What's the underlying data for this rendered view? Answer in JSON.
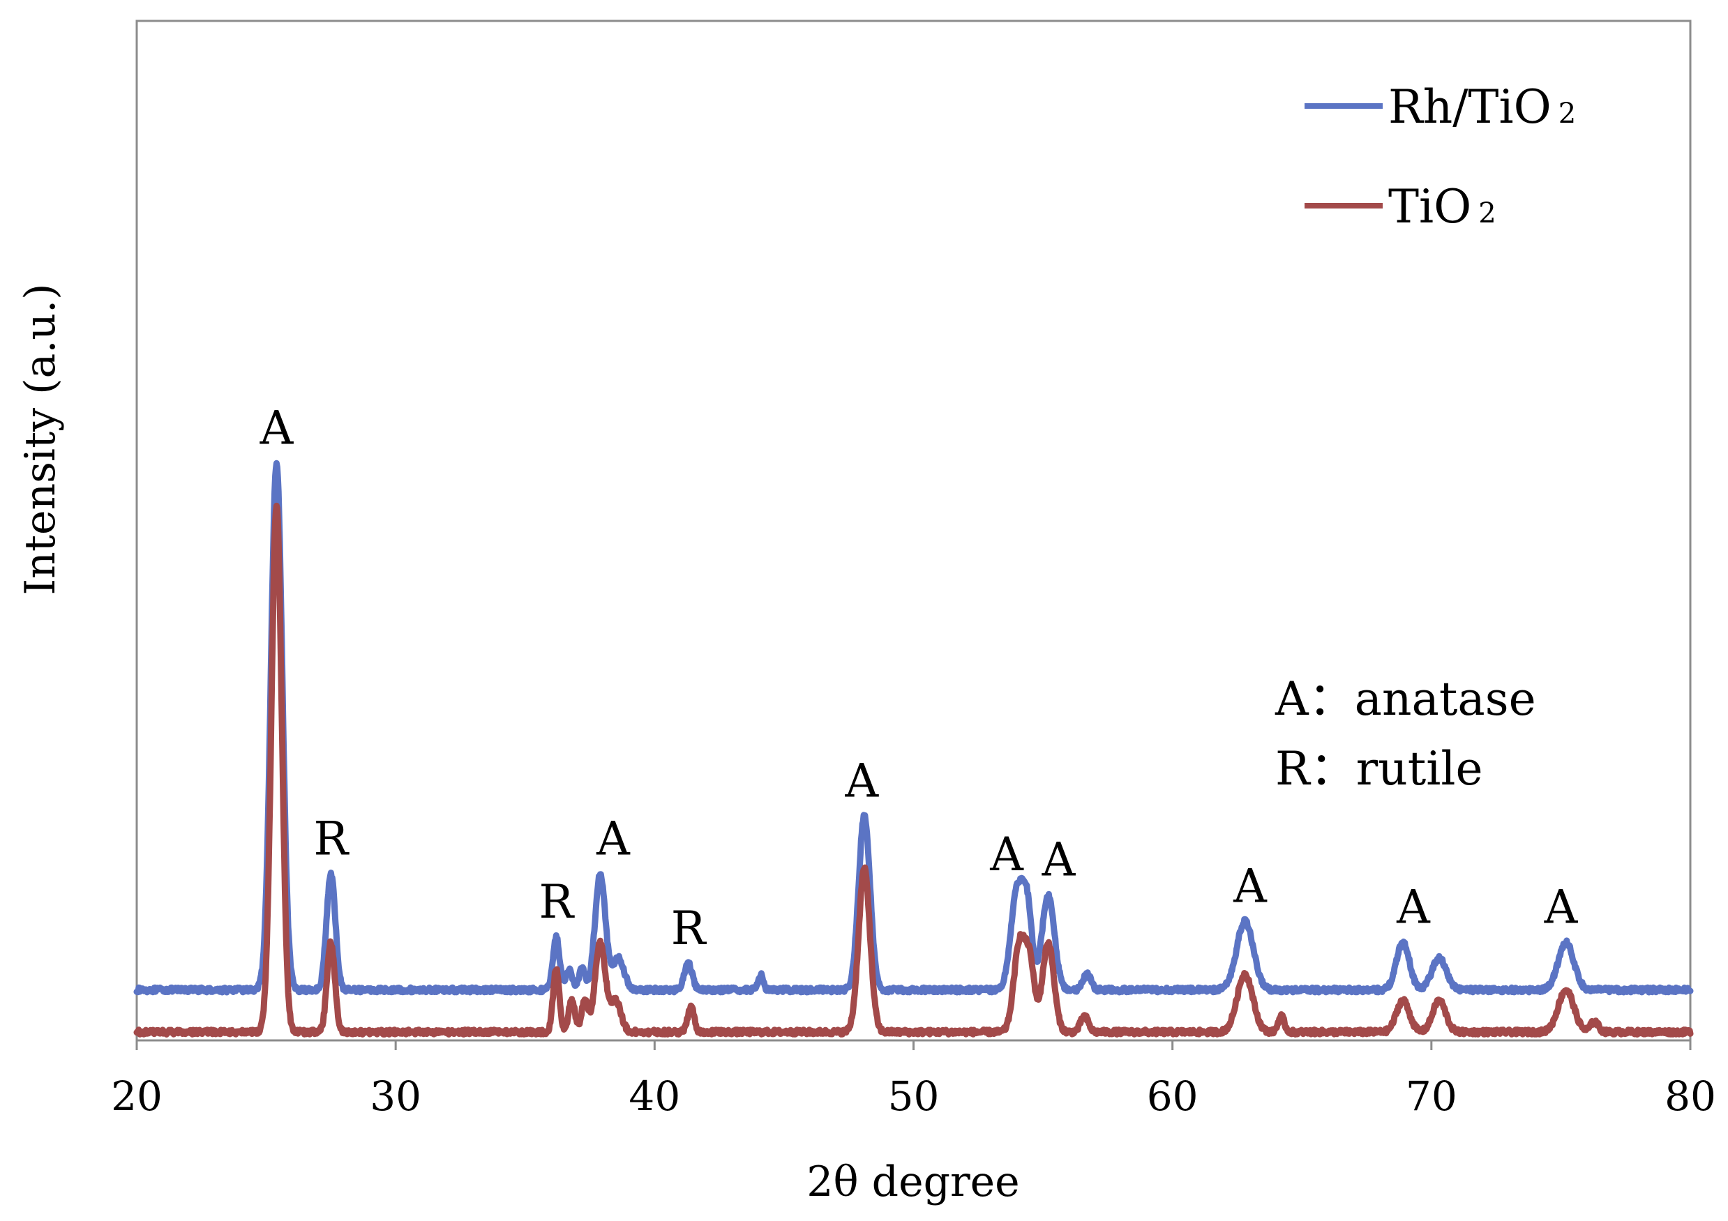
{
  "chart_data": {
    "type": "line",
    "title": "",
    "xlabel": "2θ degree",
    "ylabel": "Intensity (a.u.)",
    "xlim": [
      20,
      80
    ],
    "xticks": [
      20,
      30,
      40,
      50,
      60,
      70,
      80
    ],
    "yticks_shown": false,
    "grid": false,
    "legend_position": "top-right",
    "series": [
      {
        "name": "Rh/TiO₂",
        "color": "#5b74c4",
        "baseline": 0.08,
        "noise_level": 0.0045,
        "peaks": [
          {
            "x": 25.4,
            "height": 1.0,
            "width": 0.22
          },
          {
            "x": 27.5,
            "height": 0.22,
            "width": 0.17
          },
          {
            "x": 36.2,
            "height": 0.1,
            "width": 0.13
          },
          {
            "x": 36.7,
            "height": 0.04,
            "width": 0.12
          },
          {
            "x": 37.2,
            "height": 0.04,
            "width": 0.12
          },
          {
            "x": 37.9,
            "height": 0.22,
            "width": 0.2
          },
          {
            "x": 38.6,
            "height": 0.06,
            "width": 0.22
          },
          {
            "x": 41.3,
            "height": 0.05,
            "width": 0.15
          },
          {
            "x": 44.1,
            "height": 0.03,
            "width": 0.1
          },
          {
            "x": 48.1,
            "height": 0.33,
            "width": 0.22
          },
          {
            "x": 54.0,
            "height": 0.19,
            "width": 0.24
          },
          {
            "x": 54.4,
            "height": 0.14,
            "width": 0.18
          },
          {
            "x": 55.2,
            "height": 0.18,
            "width": 0.24
          },
          {
            "x": 56.7,
            "height": 0.03,
            "width": 0.15
          },
          {
            "x": 62.8,
            "height": 0.13,
            "width": 0.32
          },
          {
            "x": 68.9,
            "height": 0.09,
            "width": 0.25
          },
          {
            "x": 70.3,
            "height": 0.06,
            "width": 0.28
          },
          {
            "x": 75.2,
            "height": 0.09,
            "width": 0.3
          }
        ],
        "peak_labels": [
          {
            "x": 25.4,
            "text": "A"
          },
          {
            "x": 27.5,
            "text": "R"
          },
          {
            "x": 36.2,
            "text": "R"
          },
          {
            "x": 38.4,
            "text": "A"
          },
          {
            "x": 41.3,
            "text": "R"
          },
          {
            "x": 48.0,
            "text": "A"
          },
          {
            "x": 53.6,
            "text": "A"
          },
          {
            "x": 55.6,
            "text": "A"
          },
          {
            "x": 63.0,
            "text": "A"
          },
          {
            "x": 69.3,
            "text": "A"
          },
          {
            "x": 75.0,
            "text": "A"
          }
        ]
      },
      {
        "name": "TiO₂",
        "color": "#a34a4a",
        "baseline": 0.0,
        "noise_level": 0.0045,
        "peaks": [
          {
            "x": 25.4,
            "height": 1.0,
            "width": 0.2
          },
          {
            "x": 27.5,
            "height": 0.17,
            "width": 0.15
          },
          {
            "x": 36.2,
            "height": 0.12,
            "width": 0.12
          },
          {
            "x": 36.8,
            "height": 0.06,
            "width": 0.12
          },
          {
            "x": 37.3,
            "height": 0.06,
            "width": 0.12
          },
          {
            "x": 37.9,
            "height": 0.17,
            "width": 0.2
          },
          {
            "x": 38.5,
            "height": 0.06,
            "width": 0.2
          },
          {
            "x": 41.4,
            "height": 0.05,
            "width": 0.12
          },
          {
            "x": 48.1,
            "height": 0.31,
            "width": 0.22
          },
          {
            "x": 54.1,
            "height": 0.17,
            "width": 0.22
          },
          {
            "x": 54.5,
            "height": 0.12,
            "width": 0.18
          },
          {
            "x": 55.2,
            "height": 0.17,
            "width": 0.22
          },
          {
            "x": 56.6,
            "height": 0.03,
            "width": 0.15
          },
          {
            "x": 62.8,
            "height": 0.11,
            "width": 0.3
          },
          {
            "x": 64.2,
            "height": 0.03,
            "width": 0.12
          },
          {
            "x": 68.9,
            "height": 0.06,
            "width": 0.25
          },
          {
            "x": 70.3,
            "height": 0.06,
            "width": 0.25
          },
          {
            "x": 75.2,
            "height": 0.08,
            "width": 0.3
          },
          {
            "x": 76.3,
            "height": 0.02,
            "width": 0.15
          }
        ],
        "peak_labels": []
      }
    ],
    "legend": {
      "entries": [
        {
          "label": "Rh/TiO",
          "subscript": "2"
        },
        {
          "label": "TiO",
          "subscript": "2"
        }
      ]
    },
    "notes": [
      {
        "text": "A：anatase"
      },
      {
        "text": "R：rutile"
      }
    ]
  }
}
